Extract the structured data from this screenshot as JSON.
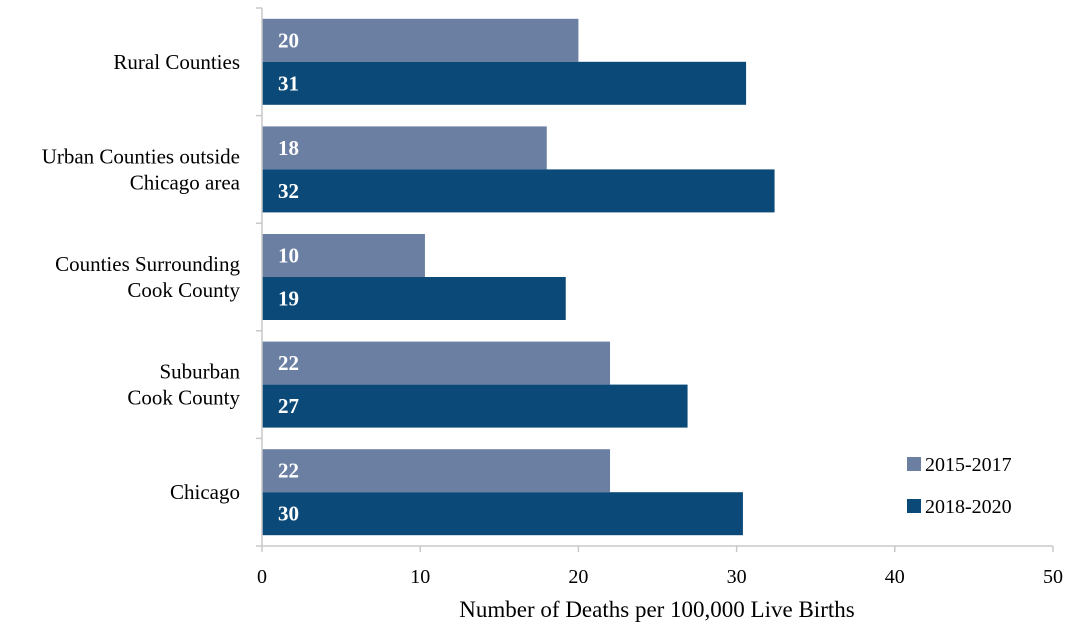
{
  "chart_data": {
    "type": "bar",
    "orientation": "horizontal",
    "title": "",
    "xlabel": "Number of Deaths per 100,000 Live Births",
    "ylabel": "",
    "xlim": [
      0,
      50
    ],
    "xticks": [
      "0",
      "10",
      "20",
      "30",
      "40",
      "50"
    ],
    "grid": false,
    "legend_position": "bottom-right",
    "categories": [
      [
        "Rural Counties"
      ],
      [
        "Urban Counties outside",
        "Chicago area"
      ],
      [
        "Counties Surrounding",
        "Cook County"
      ],
      [
        "Suburban",
        "Cook County"
      ],
      [
        "Chicago"
      ]
    ],
    "series": [
      {
        "name": "2015-2017",
        "color": "#6b7fa3",
        "values": [
          20,
          18,
          10.3,
          22,
          22
        ],
        "labels": [
          "20",
          "18",
          "10",
          "22",
          "22"
        ]
      },
      {
        "name": "2018-2020",
        "color": "#0b4a78",
        "values": [
          30.6,
          32.4,
          19.2,
          26.9,
          30.4
        ],
        "labels": [
          "31",
          "32",
          "19",
          "27",
          "30"
        ]
      }
    ]
  }
}
